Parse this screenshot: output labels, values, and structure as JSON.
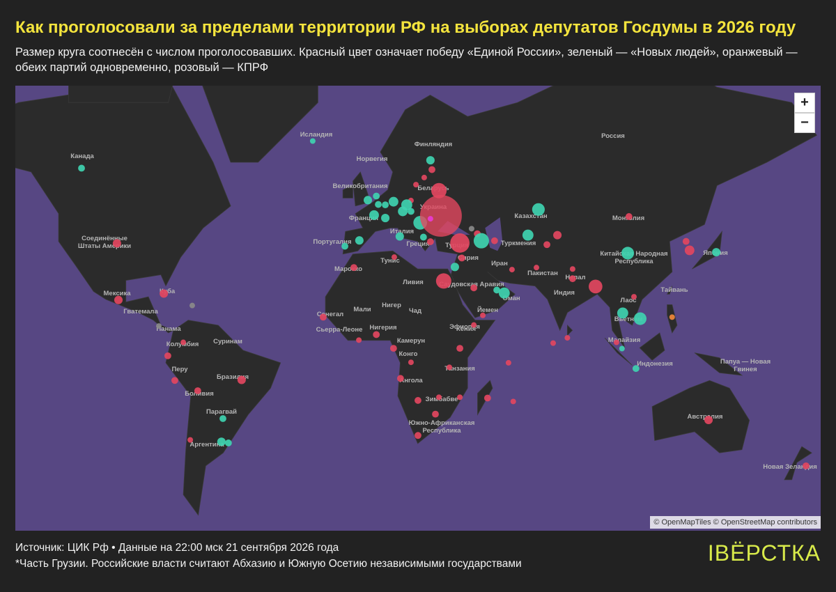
{
  "header": {
    "title": "Как проголосовали за пределами территории РФ на выборах депутатов Госдумы в 2026 году",
    "subtitle": "Размер круга соотнесён с числом проголосовавших. Красный цвет означает победу «Единой России», зеленый — «Новых людей», оранжевый — обеих партий одновременно, розовый — КПРФ"
  },
  "map": {
    "type": "map",
    "colors": {
      "red": "#e2475f",
      "green": "#3fd3b0",
      "orange": "#f0883a",
      "pink": "#e83bd6",
      "gray": "#8a8a8a"
    },
    "zoom_in": "+",
    "zoom_out": "−",
    "attribution": "© OpenMapTiles © OpenStreetMap contributors",
    "labels": [
      {
        "lines": [
          "Канада"
        ]
      },
      {
        "lines": [
          "Исландия"
        ]
      },
      {
        "lines": [
          "Финляндия"
        ]
      },
      {
        "lines": [
          "Норвегия"
        ]
      },
      {
        "lines": [
          "Россия"
        ]
      },
      {
        "lines": [
          "Великобритания"
        ]
      },
      {
        "lines": [
          "Беларусь"
        ]
      },
      {
        "lines": [
          "Украина"
        ]
      },
      {
        "lines": [
          "Франция"
        ]
      },
      {
        "lines": [
          "Италия"
        ]
      },
      {
        "lines": [
          "Португалия"
        ]
      },
      {
        "lines": [
          "Греция"
        ]
      },
      {
        "lines": [
          "Турция"
        ]
      },
      {
        "lines": [
          "Казахстан"
        ]
      },
      {
        "lines": [
          "Монголия"
        ]
      },
      {
        "lines": [
          "Туркмения"
        ]
      },
      {
        "lines": [
          "Сирия"
        ]
      },
      {
        "lines": [
          "Иран"
        ]
      },
      {
        "lines": [
          "Пакистан"
        ]
      },
      {
        "lines": [
          "Непал"
        ]
      },
      {
        "lines": [
          "Индия"
        ]
      },
      {
        "lines": [
          "Китайская Народная",
          "Республика"
        ]
      },
      {
        "lines": [
          "Япония"
        ]
      },
      {
        "lines": [
          "Тайвань"
        ]
      },
      {
        "lines": [
          "Лаос"
        ]
      },
      {
        "lines": [
          "Вьетнам"
        ]
      },
      {
        "lines": [
          "Малайзия"
        ]
      },
      {
        "lines": [
          "Индонезия"
        ]
      },
      {
        "lines": [
          "Папуа — Новая",
          "Гвинея"
        ]
      },
      {
        "lines": [
          "Австралия"
        ]
      },
      {
        "lines": [
          "Новая Зеландия"
        ]
      },
      {
        "lines": [
          "Соединённые",
          "Штаты Америки"
        ]
      },
      {
        "lines": [
          "Мексика"
        ]
      },
      {
        "lines": [
          "Куба"
        ]
      },
      {
        "lines": [
          "Гватемала"
        ]
      },
      {
        "lines": [
          "Панама"
        ]
      },
      {
        "lines": [
          "Колумбия"
        ]
      },
      {
        "lines": [
          "Суринам"
        ]
      },
      {
        "lines": [
          "Перу"
        ]
      },
      {
        "lines": [
          "Бразилия"
        ]
      },
      {
        "lines": [
          "Боливия"
        ]
      },
      {
        "lines": [
          "Парагвай"
        ]
      },
      {
        "lines": [
          "Аргентина"
        ]
      },
      {
        "lines": [
          "Марокко"
        ]
      },
      {
        "lines": [
          "Тунис"
        ]
      },
      {
        "lines": [
          "Ливия"
        ]
      },
      {
        "lines": [
          "Мали"
        ]
      },
      {
        "lines": [
          "Нигер"
        ]
      },
      {
        "lines": [
          "Чад"
        ]
      },
      {
        "lines": [
          "Сенегал"
        ]
      },
      {
        "lines": [
          "Сьерра-Леоне"
        ]
      },
      {
        "lines": [
          "Нигерия"
        ]
      },
      {
        "lines": [
          "Камерун"
        ]
      },
      {
        "lines": [
          "Конго"
        ]
      },
      {
        "lines": [
          "Ангола"
        ]
      },
      {
        "lines": [
          "Танзания"
        ]
      },
      {
        "lines": [
          "Кения"
        ]
      },
      {
        "lines": [
          "Эфиопия"
        ]
      },
      {
        "lines": [
          "Йемен"
        ]
      },
      {
        "lines": [
          "Оман"
        ]
      },
      {
        "lines": [
          "Саудовская Аравия"
        ]
      },
      {
        "lines": [
          "Зимбабве"
        ]
      },
      {
        "lines": [
          "Южно-Африканская",
          "Республика"
        ]
      }
    ],
    "markers": [
      {
        "lon": -114.8,
        "lat": 58.8,
        "voters": 500,
        "winner": "green"
      },
      {
        "lon": -22.1,
        "lat": 64.0,
        "voters": 330,
        "winner": "green"
      },
      {
        "lon": 25.1,
        "lat": 60.4,
        "voters": 750,
        "winner": "green"
      },
      {
        "lon": 25.7,
        "lat": 58.5,
        "voters": 500,
        "winner": "red"
      },
      {
        "lon": 22.6,
        "lat": 56.8,
        "voters": 330,
        "winner": "red"
      },
      {
        "lon": 19.3,
        "lat": 55.2,
        "voters": 330,
        "winner": "red"
      },
      {
        "lon": 28.5,
        "lat": 53.8,
        "voters": 2500,
        "winner": "red"
      },
      {
        "lon": 17.3,
        "lat": 51.4,
        "voters": 330,
        "winner": "red"
      },
      {
        "lon": 10.3,
        "lat": 51.1,
        "voters": 1000,
        "winner": "green"
      },
      {
        "lon": 3.4,
        "lat": 52.5,
        "voters": 500,
        "winner": "green"
      },
      {
        "lon": 0.0,
        "lat": 51.5,
        "voters": 750,
        "winner": "green"
      },
      {
        "lon": 4.2,
        "lat": 50.4,
        "voters": 500,
        "winner": "green"
      },
      {
        "lon": 7.0,
        "lat": 50.3,
        "voters": 500,
        "winner": "green"
      },
      {
        "lon": 15.6,
        "lat": 50.3,
        "voters": 1300,
        "winner": "green"
      },
      {
        "lon": 2.5,
        "lat": 47.6,
        "voters": 1000,
        "winner": "green"
      },
      {
        "lon": 14.0,
        "lat": 48.6,
        "voters": 1000,
        "winner": "green"
      },
      {
        "lon": 7.0,
        "lat": 46.8,
        "voters": 750,
        "winner": "green"
      },
      {
        "lon": 17.3,
        "lat": 48.6,
        "voters": 500,
        "winner": "green"
      },
      {
        "lon": 21.0,
        "lat": 45.5,
        "voters": 2000,
        "winner": "green"
      },
      {
        "lon": 29.3,
        "lat": 47.4,
        "voters": 18600,
        "winner": "red"
      },
      {
        "lon": 25.1,
        "lat": 46.6,
        "voters": 330,
        "winner": "pink"
      },
      {
        "lon": 41.6,
        "lat": 43.8,
        "voters": 330,
        "winner": "gray"
      },
      {
        "lon": 43.9,
        "lat": 42.3,
        "voters": 500,
        "winner": "red"
      },
      {
        "lon": 45.5,
        "lat": 40.2,
        "voters": 2500,
        "winner": "green"
      },
      {
        "lon": 36.9,
        "lat": 39.5,
        "voters": 4000,
        "winner": "red"
      },
      {
        "lon": 25.1,
        "lat": 39.9,
        "voters": 500,
        "winner": "red"
      },
      {
        "lon": 22.3,
        "lat": 41.3,
        "voters": 500,
        "winner": "green"
      },
      {
        "lon": 12.8,
        "lat": 41.5,
        "voters": 750,
        "winner": "green"
      },
      {
        "lon": -3.4,
        "lat": 40.3,
        "voters": 750,
        "winner": "green"
      },
      {
        "lon": -9.2,
        "lat": 38.5,
        "voters": 500,
        "winner": "green"
      },
      {
        "lon": -5.6,
        "lat": 31.5,
        "voters": 500,
        "winner": "red"
      },
      {
        "lon": 10.6,
        "lat": 35.0,
        "voters": 330,
        "winner": "red"
      },
      {
        "lon": 34.9,
        "lat": 31.7,
        "voters": 750,
        "winner": "green"
      },
      {
        "lon": 30.4,
        "lat": 26.8,
        "voters": 2500,
        "winner": "red"
      },
      {
        "lon": 37.7,
        "lat": 34.7,
        "voters": 500,
        "winner": "red"
      },
      {
        "lon": 50.8,
        "lat": 40.2,
        "voters": 500,
        "winner": "red"
      },
      {
        "lon": 64.2,
        "lat": 41.9,
        "voters": 1300,
        "winner": "green"
      },
      {
        "lon": 68.4,
        "lat": 49.1,
        "voters": 1700,
        "winner": "green"
      },
      {
        "lon": 76.0,
        "lat": 41.9,
        "voters": 750,
        "winner": "red"
      },
      {
        "lon": 71.8,
        "lat": 39.0,
        "voters": 500,
        "winner": "red"
      },
      {
        "lon": 57.8,
        "lat": 30.8,
        "voters": 330,
        "winner": "red"
      },
      {
        "lon": 67.6,
        "lat": 31.5,
        "voters": 330,
        "winner": "red"
      },
      {
        "lon": 54.7,
        "lat": 22.4,
        "voters": 1300,
        "winner": "green"
      },
      {
        "lon": 51.7,
        "lat": 23.5,
        "voters": 500,
        "winner": "green"
      },
      {
        "lon": 42.5,
        "lat": 24.3,
        "voters": 500,
        "winner": "red"
      },
      {
        "lon": 46.1,
        "lat": 13.9,
        "voters": 330,
        "winner": "red"
      },
      {
        "lon": 82.1,
        "lat": 27.6,
        "voters": 500,
        "winner": "red"
      },
      {
        "lon": 91.3,
        "lat": 24.8,
        "voters": 2000,
        "winner": "red"
      },
      {
        "lon": 82.1,
        "lat": 31.0,
        "voters": 330,
        "winner": "red"
      },
      {
        "lon": 104.7,
        "lat": 47.2,
        "voters": 500,
        "winner": "red"
      },
      {
        "lon": 104.2,
        "lat": 36.3,
        "voters": 1700,
        "winner": "green"
      },
      {
        "lon": 129.0,
        "lat": 37.2,
        "voters": 1000,
        "winner": "red"
      },
      {
        "lon": 127.6,
        "lat": 40.0,
        "voters": 500,
        "winner": "red"
      },
      {
        "lon": 139.7,
        "lat": 36.6,
        "voters": 750,
        "winner": "green"
      },
      {
        "lon": 102.2,
        "lat": 14.8,
        "voters": 1300,
        "winner": "green"
      },
      {
        "lon": 109.2,
        "lat": 12.6,
        "voters": 1700,
        "winner": "green"
      },
      {
        "lon": 106.7,
        "lat": 21.0,
        "voters": 330,
        "winner": "red"
      },
      {
        "lon": 122.0,
        "lat": 13.2,
        "voters": 330,
        "winner": "orange"
      },
      {
        "lon": 99.7,
        "lat": 3.2,
        "voters": 330,
        "winner": "red"
      },
      {
        "lon": 101.9,
        "lat": 0.7,
        "voters": 330,
        "winner": "green"
      },
      {
        "lon": 107.5,
        "lat": -7.3,
        "voters": 500,
        "winner": "green"
      },
      {
        "lon": 136.6,
        "lat": -26.9,
        "voters": 750,
        "winner": "red"
      },
      {
        "lon": 175.7,
        "lat": -42.0,
        "voters": 500,
        "winner": "red"
      },
      {
        "lon": -58.7,
        "lat": -34.4,
        "voters": 750,
        "winner": "green"
      },
      {
        "lon": -55.9,
        "lat": -34.8,
        "voters": 500,
        "winner": "green"
      },
      {
        "lon": -58.1,
        "lat": -26.4,
        "voters": 500,
        "winner": "green"
      },
      {
        "lon": -71.2,
        "lat": -33.8,
        "voters": 330,
        "winner": "red"
      },
      {
        "lon": -50.6,
        "lat": -11.8,
        "voters": 750,
        "winner": "red"
      },
      {
        "lon": -68.2,
        "lat": -16.0,
        "voters": 500,
        "winner": "red"
      },
      {
        "lon": -77.4,
        "lat": -12.0,
        "voters": 500,
        "winner": "red"
      },
      {
        "lon": -80.2,
        "lat": -2.2,
        "voters": 500,
        "winner": "red"
      },
      {
        "lon": -74.0,
        "lat": 3.2,
        "voters": 330,
        "winner": "red"
      },
      {
        "lon": -81.8,
        "lat": 22.2,
        "voters": 750,
        "winner": "red"
      },
      {
        "lon": -100.0,
        "lat": 19.8,
        "voters": 750,
        "winner": "red"
      },
      {
        "lon": -100.6,
        "lat": 39.4,
        "voters": 750,
        "winner": "red"
      },
      {
        "lon": -70.4,
        "lat": 17.7,
        "voters": 330,
        "winner": "gray"
      },
      {
        "lon": -83.8,
        "lat": 9.7,
        "voters": 330,
        "winner": "gray"
      },
      {
        "lon": -17.9,
        "lat": 13.2,
        "voters": 500,
        "winner": "red"
      },
      {
        "lon": 3.4,
        "lat": 6.3,
        "voters": 500,
        "winner": "red"
      },
      {
        "lon": -3.6,
        "lat": 4.1,
        "voters": 330,
        "winner": "red"
      },
      {
        "lon": 10.3,
        "lat": 0.8,
        "voters": 500,
        "winner": "red"
      },
      {
        "lon": 42.5,
        "lat": 10.1,
        "voters": 330,
        "winner": "red"
      },
      {
        "lon": 36.9,
        "lat": 0.8,
        "voters": 500,
        "winner": "red"
      },
      {
        "lon": 32.7,
        "lat": -6.8,
        "voters": 330,
        "winner": "red"
      },
      {
        "lon": 13.1,
        "lat": -11.2,
        "voters": 500,
        "winner": "red"
      },
      {
        "lon": 17.3,
        "lat": -4.8,
        "voters": 330,
        "winner": "red"
      },
      {
        "lon": 20.1,
        "lat": -19.7,
        "voters": 500,
        "winner": "red"
      },
      {
        "lon": 28.5,
        "lat": -18.5,
        "voters": 330,
        "winner": "red"
      },
      {
        "lon": 27.1,
        "lat": -24.8,
        "voters": 500,
        "winner": "red"
      },
      {
        "lon": 20.1,
        "lat": -32.3,
        "voters": 500,
        "winner": "red"
      },
      {
        "lon": 48.0,
        "lat": -18.8,
        "voters": 500,
        "winner": "red"
      },
      {
        "lon": 58.3,
        "lat": -20.1,
        "voters": 330,
        "winner": "red"
      },
      {
        "lon": 56.4,
        "lat": -5.0,
        "voters": 330,
        "winner": "red"
      },
      {
        "lon": 80.0,
        "lat": 5.0,
        "voters": 330,
        "winner": "red"
      },
      {
        "lon": 74.3,
        "lat": 2.9,
        "voters": 330,
        "winner": "red"
      },
      {
        "lon": 36.9,
        "lat": -18.5,
        "voters": 330,
        "winner": "red"
      }
    ]
  },
  "footer": {
    "source": "Источник: ЦИК Рф • Данные на 22:00 мск 21 сентября 2026 года",
    "note": "*Часть Грузии. Российские власти считают Абхазию и Южную Осетию независимыми государствами",
    "logo": "вёрстка"
  }
}
